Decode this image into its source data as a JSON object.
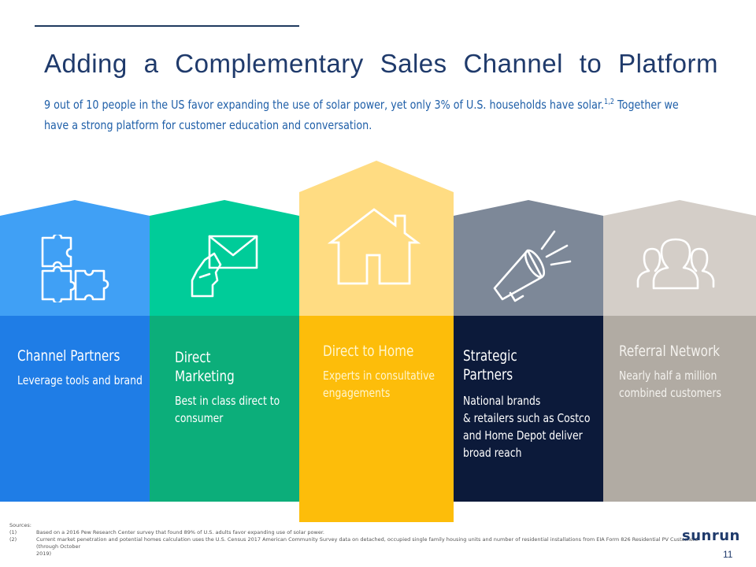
{
  "title": "Adding a Complementary Sales Channel to Platform",
  "subtitle": {
    "part1": "9 out of 10 people in the US favor expanding the use of solar power, yet only 3% of U.S. households have solar.",
    "sup": "1,2",
    "part2_line1": " Together we",
    "line2": "have a strong platform for customer education and conversation."
  },
  "channels": [
    {
      "name_lines": [
        "Channel Partners"
      ],
      "desc_lines": [
        "Leverage tools and brand"
      ],
      "icon": "puzzle-icon",
      "colors": {
        "top": "#40a0f5",
        "bottom": "#1f7de6"
      }
    },
    {
      "name_lines": [
        "Direct",
        "Marketing"
      ],
      "desc_lines": [
        "Best in class direct to",
        "consumer"
      ],
      "icon": "mail-in-hand-icon",
      "colors": {
        "top": "#00cc99",
        "bottom": "#0cae7a"
      }
    },
    {
      "name_lines": [
        "Direct to Home"
      ],
      "desc_lines": [
        "Experts in consultative",
        "engagements"
      ],
      "icon": "house-icon",
      "colors": {
        "top": "#ffdc82",
        "bottom": "#fdbd0a"
      }
    },
    {
      "name_lines": [
        "Strategic",
        "Partners"
      ],
      "desc_lines": [
        "National brands",
        "& retailers such as Costco",
        "and Home Depot deliver",
        "broad reach"
      ],
      "icon": "megaphone-icon",
      "colors": {
        "top": "#7d8898",
        "bottom": "#0c1a3a"
      }
    },
    {
      "name_lines": [
        "Referral Network"
      ],
      "desc_lines": [
        "Nearly half a million",
        "combined customers"
      ],
      "icon": "people-group-icon",
      "colors": {
        "top": "#d4cec8",
        "bottom": "#b1aba3"
      }
    }
  ],
  "sources": {
    "heading": "Sources:",
    "items": [
      {
        "num": "(1)",
        "text": "Based on a 2016 Pew Research Center survey that found 89% of U.S. adults favor expanding use of solar power."
      },
      {
        "num": "(2)",
        "text": "Current market penetration and potential homes calculation uses the U.S. Census 2017 American Community Survey data on detached, occupied single family housing units and number of residential installations from EIA Form 826 Residential PV Customers (through October",
        "cont": "2019)"
      }
    ]
  },
  "logo": "sunrun",
  "page_number": "11"
}
